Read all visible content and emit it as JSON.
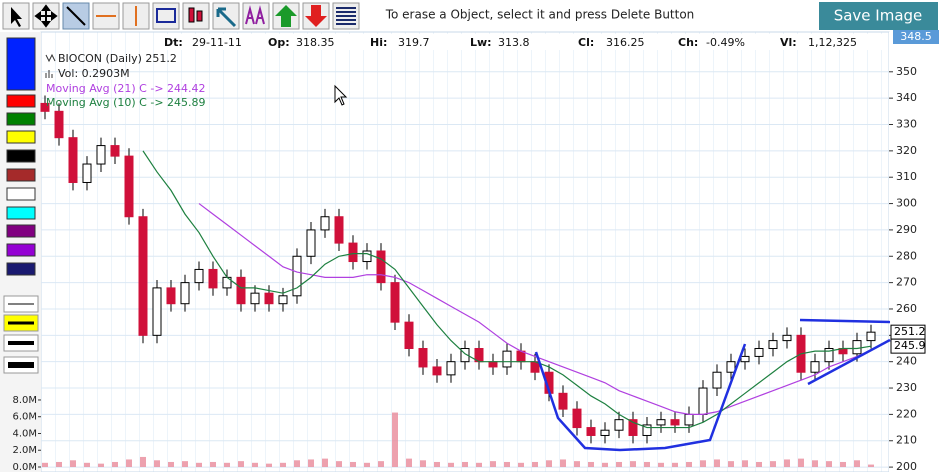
{
  "toolbar": {
    "message": "To erase a Object, select it and press Delete Button",
    "save_button": "Save Image"
  },
  "info_bar": [
    {
      "label": "Dt:",
      "value": "29-11-11"
    },
    {
      "label": "Op:",
      "value": "318.35"
    },
    {
      "label": "Hi:",
      "value": "319.7"
    },
    {
      "label": "Lw:",
      "value": "313.8"
    },
    {
      "label": "Cl:",
      "value": "316.25"
    },
    {
      "label": "Ch:",
      "value": "-0.49%"
    },
    {
      "label": "Vl:",
      "value": "1,12,325"
    }
  ],
  "cursor_price": "348.5",
  "chart_data": {
    "type": "candlestick",
    "title": "BIOCON (Daily) 251.2",
    "volume_label": "Vol: 0.2903M",
    "up_color": "#ffffff",
    "down_color": "#d0103a",
    "volume_color": "#e88a9a",
    "open": [
      338,
      335,
      325,
      308,
      315,
      322,
      318,
      295,
      250,
      268,
      262,
      270,
      275,
      268,
      272,
      262,
      266,
      262,
      265,
      280,
      290,
      295,
      285,
      278,
      282,
      270,
      255,
      245,
      238,
      235,
      240,
      245,
      240,
      238,
      244,
      240,
      236,
      228,
      222,
      215,
      212,
      214,
      218,
      212,
      216,
      218,
      216,
      220,
      230,
      236,
      240,
      242,
      245,
      248,
      250,
      236,
      240,
      245,
      243,
      248
    ],
    "high": [
      341,
      338,
      328,
      318,
      325,
      325,
      321,
      298,
      271,
      271,
      273,
      278,
      278,
      275,
      275,
      269,
      269,
      268,
      283,
      293,
      298,
      298,
      288,
      285,
      285,
      273,
      258,
      248,
      241,
      243,
      248,
      248,
      243,
      247,
      247,
      243,
      239,
      231,
      225,
      218,
      217,
      221,
      221,
      219,
      221,
      221,
      223,
      233,
      239,
      243,
      245,
      248,
      251,
      253,
      253,
      243,
      248,
      248,
      251,
      254
    ],
    "low": [
      332,
      322,
      305,
      305,
      312,
      315,
      292,
      247,
      247,
      259,
      259,
      267,
      265,
      265,
      259,
      259,
      259,
      259,
      262,
      277,
      287,
      282,
      275,
      275,
      267,
      252,
      242,
      235,
      232,
      232,
      237,
      237,
      235,
      235,
      237,
      233,
      225,
      219,
      212,
      209,
      209,
      211,
      209,
      209,
      213,
      213,
      213,
      217,
      227,
      233,
      237,
      239,
      242,
      245,
      233,
      233,
      237,
      240,
      240,
      245
    ],
    "close": [
      335,
      325,
      308,
      315,
      322,
      318,
      295,
      250,
      268,
      262,
      270,
      275,
      268,
      272,
      262,
      266,
      262,
      265,
      280,
      290,
      295,
      285,
      278,
      282,
      270,
      255,
      245,
      238,
      235,
      240,
      245,
      240,
      238,
      244,
      240,
      236,
      228,
      222,
      215,
      212,
      214,
      218,
      212,
      216,
      218,
      216,
      220,
      230,
      236,
      240,
      242,
      245,
      248,
      250,
      236,
      240,
      245,
      243,
      248,
      251.2
    ],
    "volume": [
      0.5,
      0.6,
      0.8,
      0.5,
      0.4,
      0.6,
      0.9,
      1.2,
      0.8,
      0.6,
      0.7,
      0.5,
      0.6,
      0.5,
      0.7,
      0.5,
      0.4,
      0.5,
      0.8,
      0.9,
      1.0,
      0.7,
      0.6,
      0.5,
      0.7,
      6.5,
      1.0,
      0.8,
      0.6,
      0.5,
      0.6,
      0.5,
      0.7,
      0.6,
      0.5,
      0.6,
      0.8,
      0.9,
      0.7,
      0.6,
      0.5,
      0.6,
      0.7,
      0.6,
      0.5,
      0.5,
      0.6,
      0.8,
      0.9,
      0.7,
      0.8,
      0.6,
      0.7,
      0.9,
      1.0,
      0.8,
      0.7,
      0.6,
      0.8,
      0.2903
    ],
    "series": [
      {
        "name": "Moving Avg (21) C -> 244.42",
        "color": "#b040e0",
        "values": [
          null,
          null,
          null,
          null,
          null,
          null,
          null,
          null,
          null,
          null,
          null,
          300,
          296,
          292,
          288,
          284,
          280,
          276,
          274,
          273,
          272,
          272,
          272,
          273,
          273,
          272,
          270,
          267,
          264,
          261,
          258,
          255,
          251,
          247,
          244,
          242,
          240,
          238,
          236,
          234,
          232,
          229,
          227,
          225,
          223,
          221,
          220,
          220,
          221,
          223,
          225,
          227,
          229,
          231,
          233,
          235,
          238,
          240,
          242,
          244.42
        ]
      },
      {
        "name": "Moving Avg (10) C -> 245.89",
        "color": "#1e8040",
        "values": [
          null,
          null,
          null,
          null,
          null,
          null,
          null,
          320,
          312,
          305,
          296,
          289,
          280,
          272,
          268,
          268,
          267,
          266,
          268,
          272,
          277,
          280,
          281,
          281,
          279,
          275,
          268,
          261,
          254,
          248,
          243,
          240,
          240,
          240,
          240,
          240,
          238,
          235,
          231,
          227,
          224,
          220,
          217,
          215,
          215,
          215,
          215,
          217,
          220,
          224,
          228,
          232,
          236,
          240,
          243,
          244,
          244,
          245,
          245,
          245.89
        ]
      }
    ],
    "price_tags": [
      {
        "value": 251.2,
        "label": "251.2"
      },
      {
        "value": 245.9,
        "label": "245.9"
      }
    ],
    "ylim": [
      198.9,
      365.1
    ],
    "yticks": [
      200,
      210,
      220,
      230,
      240,
      250,
      260,
      270,
      280,
      290,
      300,
      310,
      320,
      330,
      340,
      350
    ],
    "vlim": [
      -0.358,
      9.19
    ],
    "vticks": [
      {
        "value": 0,
        "label": "0.0M"
      },
      {
        "value": 2,
        "label": "2.0M"
      },
      {
        "value": 4,
        "label": "4.0M"
      },
      {
        "value": 6,
        "label": "6.0M"
      },
      {
        "value": 8,
        "label": "8.0M"
      }
    ],
    "grid": true
  }
}
